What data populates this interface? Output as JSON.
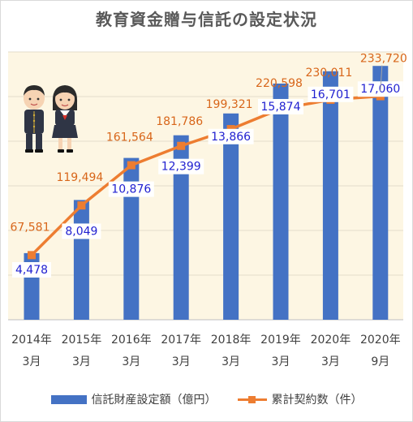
{
  "title": "教育資金贈与信託の設定状況",
  "colors": {
    "bar": "#4472c4",
    "line": "#ed7d31",
    "bar_label": "#1f1fd0",
    "line_label": "#d8661a",
    "plot_bg": "#fdf6e3"
  },
  "icons": [
    "students-illustration"
  ],
  "chart_data": {
    "type": "bar+line",
    "categories": [
      [
        "2014年",
        "3月"
      ],
      [
        "2015年",
        "3月"
      ],
      [
        "2016年",
        "3月"
      ],
      [
        "2017年",
        "3月"
      ],
      [
        "2018年",
        "3月"
      ],
      [
        "2019年",
        "3月"
      ],
      [
        "2020年",
        "3月"
      ],
      [
        "2020年",
        "9月"
      ]
    ],
    "series": [
      {
        "name": "信託財産設定額（億円）",
        "type": "bar",
        "values": [
          4478,
          8049,
          10876,
          12399,
          13866,
          15874,
          16701,
          17060
        ],
        "labels": [
          "4,478",
          "8,049",
          "10,876",
          "12,399",
          "13,866",
          "15,874",
          "16,701",
          "17,060"
        ]
      },
      {
        "name": "累計契約数（件）",
        "type": "line",
        "values": [
          67581,
          119494,
          161564,
          181786,
          199321,
          220598,
          230011,
          233720
        ],
        "labels": [
          "67,581",
          "119,494",
          "161,564",
          "181,786",
          "199,321",
          "220,598",
          "230,011",
          "233,720"
        ]
      }
    ],
    "bar_axis_max": 18000,
    "line_axis_max": 280000,
    "grid": true,
    "axis_tick_labels_shown": false,
    "legend_position": "bottom"
  }
}
